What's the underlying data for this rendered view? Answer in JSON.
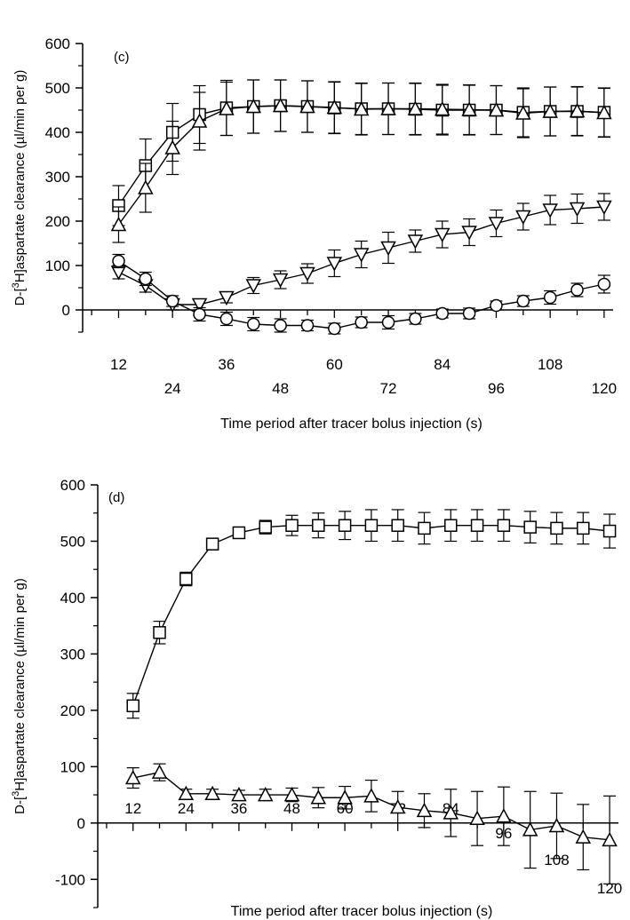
{
  "chart_data": [
    {
      "type": "line",
      "panel_label": "(c)",
      "xlabel": "Time period after tracer bolus injection (s)",
      "ylabel": "D-[3H]aspartate clearance (µl/min per g)",
      "ylabel_parts": {
        "prefix": "D-[",
        "sup": "3",
        "suffix": "H]aspartate clearance (µl/min per g)"
      },
      "xlim": [
        4,
        122
      ],
      "ylim": [
        -50,
        600
      ],
      "yticks": [
        0,
        100,
        200,
        300,
        400,
        500,
        600
      ],
      "xticks": [
        12,
        24,
        36,
        48,
        60,
        72,
        84,
        96,
        108,
        120
      ],
      "x": [
        12,
        18,
        24,
        30,
        36,
        42,
        48,
        54,
        60,
        66,
        72,
        78,
        84,
        90,
        96,
        102,
        108,
        114,
        120
      ],
      "series": [
        {
          "marker": "square",
          "values": [
            235,
            325,
            400,
            440,
            455,
            458,
            460,
            458,
            455,
            453,
            453,
            452,
            450,
            450,
            450,
            445,
            447,
            447,
            445
          ],
          "errors": [
            45,
            60,
            65,
            65,
            62,
            60,
            58,
            58,
            58,
            58,
            58,
            58,
            56,
            56,
            55,
            55,
            55,
            55,
            55
          ]
        },
        {
          "marker": "triangle-up",
          "values": [
            192,
            275,
            365,
            425,
            453,
            458,
            460,
            458,
            456,
            452,
            453,
            453,
            452,
            451,
            450,
            443,
            447,
            448,
            444
          ],
          "errors": [
            40,
            55,
            60,
            65,
            60,
            60,
            58,
            58,
            58,
            58,
            58,
            58,
            56,
            56,
            55,
            55,
            55,
            55,
            55
          ]
        },
        {
          "marker": "triangle-down",
          "values": [
            85,
            55,
            12,
            12,
            28,
            55,
            68,
            82,
            105,
            125,
            140,
            155,
            170,
            175,
            195,
            210,
            225,
            228,
            232
          ],
          "errors": [
            15,
            15,
            12,
            12,
            12,
            18,
            20,
            22,
            30,
            30,
            35,
            25,
            30,
            30,
            30,
            30,
            33,
            33,
            30
          ]
        },
        {
          "marker": "circle",
          "values": [
            110,
            70,
            20,
            -10,
            -20,
            -32,
            -35,
            -35,
            -42,
            -28,
            -28,
            -20,
            -8,
            -8,
            10,
            20,
            28,
            45,
            58
          ],
          "errors": [
            15,
            15,
            12,
            15,
            15,
            15,
            15,
            12,
            12,
            12,
            15,
            12,
            10,
            12,
            10,
            12,
            15,
            15,
            20
          ]
        }
      ]
    },
    {
      "type": "line",
      "panel_label": "(d)",
      "xlabel": "Time period after tracer bolus injection (s)",
      "ylabel": "D-[3H]aspartate clearance (µl/min per g)",
      "ylabel_parts": {
        "prefix": "D-[",
        "sup": "3",
        "suffix": "H]aspartate clearance (µl/min per g)"
      },
      "xlim": [
        4,
        122
      ],
      "ylim": [
        -150,
        600
      ],
      "yticks": [
        -100,
        0,
        100,
        200,
        300,
        400,
        500,
        600
      ],
      "xticks": [
        12,
        24,
        36,
        48,
        60,
        72,
        84,
        96,
        108,
        120
      ],
      "x": [
        12,
        18,
        24,
        30,
        36,
        42,
        48,
        54,
        60,
        66,
        72,
        78,
        84,
        90,
        96,
        102,
        108,
        114,
        120
      ],
      "series": [
        {
          "marker": "square",
          "values": [
            208,
            338,
            433,
            495,
            515,
            525,
            528,
            528,
            528,
            528,
            528,
            523,
            528,
            528,
            528,
            525,
            523,
            523,
            518
          ],
          "errors": [
            22,
            20,
            12,
            8,
            8,
            12,
            18,
            22,
            25,
            28,
            28,
            28,
            28,
            28,
            28,
            28,
            28,
            28,
            30
          ]
        },
        {
          "marker": "triangle-up",
          "values": [
            80,
            90,
            52,
            52,
            50,
            50,
            50,
            45,
            45,
            48,
            28,
            22,
            18,
            8,
            12,
            -12,
            -5,
            -25,
            -30
          ],
          "errors": [
            18,
            15,
            8,
            8,
            8,
            10,
            12,
            18,
            20,
            28,
            28,
            30,
            42,
            48,
            52,
            68,
            58,
            58,
            78
          ]
        }
      ]
    }
  ]
}
